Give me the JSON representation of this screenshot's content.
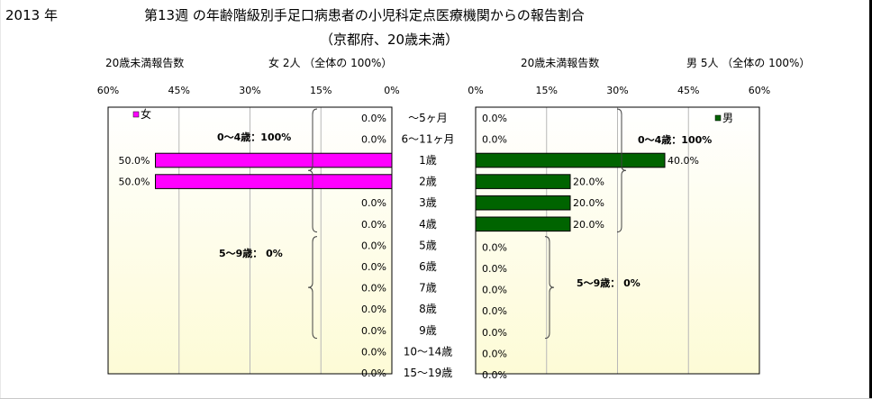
{
  "header": {
    "year": "2013 年",
    "title": "第13週 の年齢階級別手足口病患者の小児科定点医療機関からの報告割合",
    "subtitle": "（京都府、20歳未満）",
    "female_count_label": "20歳未満報告数",
    "female_summary": "女  2人 （全体の  100%）",
    "male_count_label": "20歳未満報告数",
    "male_summary": "男  5人 （全体の  100%）"
  },
  "colors": {
    "female": "#ff00ff",
    "male": "#006400",
    "plot_bg_top": "#ffffff",
    "plot_bg_bottom": "#fdfbd6"
  },
  "chart_data": [
    {
      "type": "bar",
      "orientation": "horizontal",
      "direction": "reversed",
      "legend": "女",
      "legend_position": "top-left",
      "grid": true,
      "xlim": [
        0,
        60
      ],
      "ticks": [
        "60%",
        "45%",
        "30%",
        "15%",
        "0%"
      ],
      "categories": [
        "～5ヶ月",
        "6～11ヶ月",
        "1歳",
        "2歳",
        "3歳",
        "4歳",
        "5歳",
        "6歳",
        "7歳",
        "8歳",
        "9歳",
        "10～14歳",
        "15～19歳"
      ],
      "values": [
        0,
        0,
        50,
        50,
        0,
        0,
        0,
        0,
        0,
        0,
        0,
        0,
        0
      ],
      "value_labels": [
        "0.0%",
        "0.0%",
        "50.0%",
        "50.0%",
        "0.0%",
        "0.0%",
        "0.0%",
        "0.0%",
        "0.0%",
        "0.0%",
        "0.0%",
        "0.0%",
        "0.0%"
      ],
      "annotations": [
        "0～4歳：100%",
        "5～9歳：  0%"
      ]
    },
    {
      "type": "bar",
      "orientation": "horizontal",
      "legend": "男",
      "legend_position": "top-right",
      "grid": true,
      "xlim": [
        0,
        60
      ],
      "ticks": [
        "0%",
        "15%",
        "30%",
        "45%",
        "60%"
      ],
      "categories": [
        "～5ヶ月",
        "6～11ヶ月",
        "1歳",
        "2歳",
        "3歳",
        "4歳",
        "5歳",
        "6歳",
        "7歳",
        "8歳",
        "9歳",
        "10～14歳",
        "15～19歳"
      ],
      "values": [
        0,
        0,
        40,
        20,
        20,
        20,
        0,
        0,
        0,
        0,
        0,
        0,
        0
      ],
      "value_labels": [
        "0.0%",
        "0.0%",
        "40.0%",
        "20.0%",
        "20.0%",
        "20.0%",
        "0.0%",
        "0.0%",
        "0.0%",
        "0.0%",
        "0.0%",
        "0.0%",
        "0.0%"
      ],
      "annotations": [
        "0～4歳：100%",
        "5～9歳：  0%"
      ]
    }
  ]
}
